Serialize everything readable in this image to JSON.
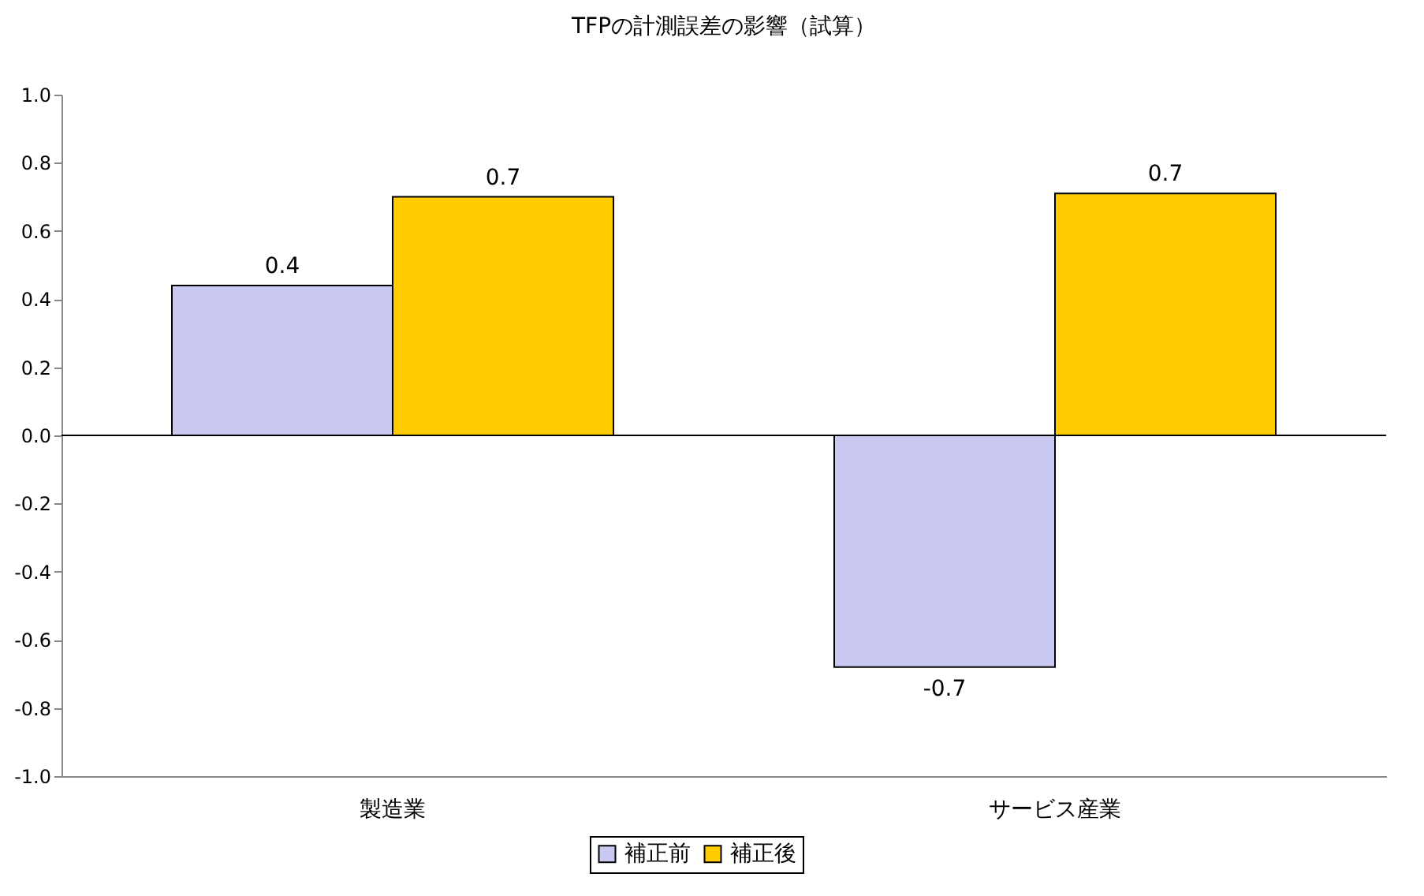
{
  "chart_data": {
    "type": "bar",
    "title": "TFPの計測誤差の影響（試算）",
    "categories": [
      "製造業",
      "サービス産業"
    ],
    "series": [
      {
        "name": "補正前",
        "color": "#c8c8f0",
        "values": [
          0.44,
          -0.68
        ],
        "value_labels": [
          "0.4",
          "-0.7"
        ]
      },
      {
        "name": "補正後",
        "color": "#ffcc00",
        "values": [
          0.7,
          0.71
        ],
        "value_labels": [
          "0.7",
          "0.7"
        ]
      }
    ],
    "ylim": [
      -1,
      1
    ],
    "yticks": [
      {
        "value": -1,
        "label": "-1.0"
      },
      {
        "value": -0.8,
        "label": "-0.8"
      },
      {
        "value": -0.6,
        "label": "-0.6"
      },
      {
        "value": -0.4,
        "label": "-0.4"
      },
      {
        "value": -0.2,
        "label": "-0.2"
      },
      {
        "value": 0,
        "label": "0.0"
      },
      {
        "value": 0.2,
        "label": "0.2"
      },
      {
        "value": 0.4,
        "label": "0.4"
      },
      {
        "value": 0.6,
        "label": "0.6"
      },
      {
        "value": 0.8,
        "label": "0.8"
      },
      {
        "value": 1,
        "label": "1.0"
      }
    ],
    "ref_lines": [
      {
        "axis": "y",
        "value": 0,
        "label": null
      }
    ],
    "grid": false,
    "legend": "bottom"
  }
}
